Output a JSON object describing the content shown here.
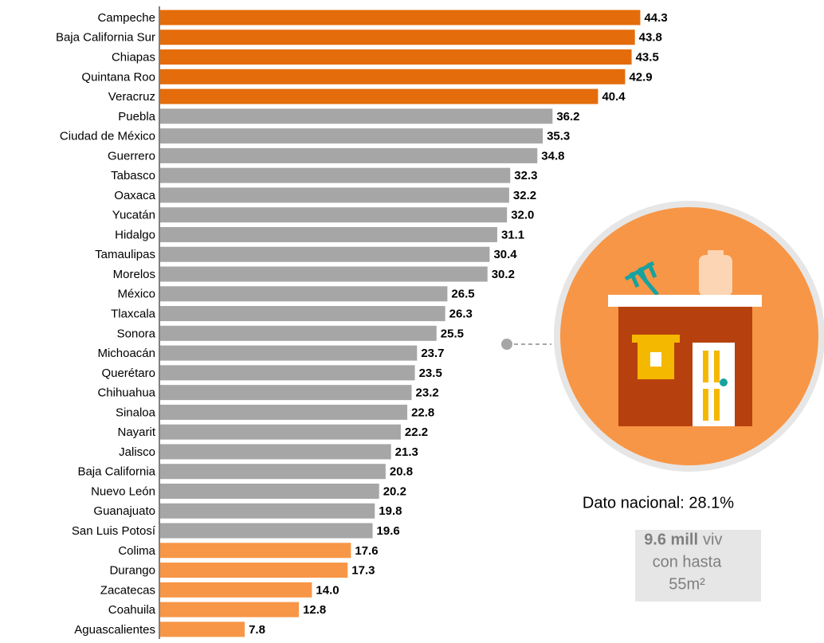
{
  "chart_data": {
    "type": "bar",
    "orientation": "horizontal",
    "categories": [
      "Campeche",
      "Baja California Sur",
      "Chiapas",
      "Quintana Roo",
      "Veracruz",
      "Puebla",
      "Ciudad de México",
      "Guerrero",
      "Tabasco",
      "Oaxaca",
      "Yucatán",
      "Hidalgo",
      "Tamaulipas",
      "Morelos",
      "México",
      "Tlaxcala",
      "Sonora",
      "Michoacán",
      "Querétaro",
      "Chihuahua",
      "Sinaloa",
      "Nayarit",
      "Jalisco",
      "Baja California",
      "Nuevo León",
      "Guanajuato",
      "San Luis Potosí",
      "Colima",
      "Durango",
      "Zacatecas",
      "Coahuila",
      "Aguascalientes"
    ],
    "values": [
      44.3,
      43.8,
      43.5,
      42.9,
      40.4,
      36.2,
      35.3,
      34.8,
      32.3,
      32.2,
      32.0,
      31.1,
      30.4,
      30.2,
      26.5,
      26.3,
      25.5,
      23.7,
      23.5,
      23.2,
      22.8,
      22.2,
      21.3,
      20.8,
      20.2,
      19.8,
      19.6,
      17.6,
      17.3,
      14.0,
      12.8,
      7.8
    ],
    "value_labels": [
      "44.3",
      "43.8",
      "43.5",
      "42.9",
      "40.4",
      "36.2",
      "35.3",
      "34.8",
      "32.3",
      "32.2",
      "32.0",
      "31.1",
      "30.4",
      "30.2",
      "26.5",
      "26.3",
      "25.5",
      "23.7",
      "23.5",
      "23.2",
      "22.8",
      "22.2",
      "21.3",
      "20.8",
      "20.2",
      "19.8",
      "19.6",
      "17.6",
      "17.3",
      "14.0",
      "12.8",
      "7.8"
    ],
    "colors": [
      "#e46c0a",
      "#e46c0a",
      "#e46c0a",
      "#e46c0a",
      "#e46c0a",
      "#a6a6a6",
      "#a6a6a6",
      "#a6a6a6",
      "#a6a6a6",
      "#a6a6a6",
      "#a6a6a6",
      "#a6a6a6",
      "#a6a6a6",
      "#a6a6a6",
      "#a6a6a6",
      "#a6a6a6",
      "#a6a6a6",
      "#a6a6a6",
      "#a6a6a6",
      "#a6a6a6",
      "#a6a6a6",
      "#a6a6a6",
      "#a6a6a6",
      "#a6a6a6",
      "#a6a6a6",
      "#a6a6a6",
      "#a6a6a6",
      "#f79646",
      "#f79646",
      "#f79646",
      "#f79646",
      "#f79646"
    ],
    "xlim": [
      0,
      45
    ],
    "annotations": {
      "national": "Dato nacional: 28.1%",
      "box_bold": "9.6 mill",
      "box_unit": "viv",
      "box_line2": "con hasta",
      "box_line3": "55m²"
    }
  }
}
